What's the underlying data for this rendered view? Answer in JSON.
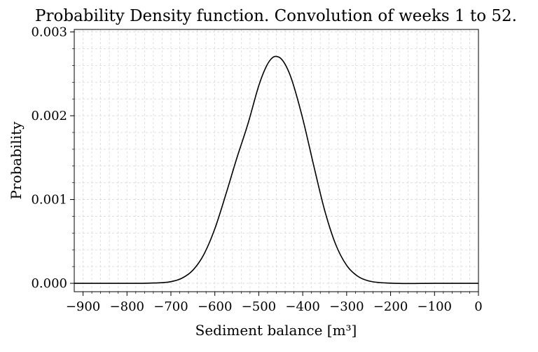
{
  "chart_data": {
    "type": "line",
    "title": "Probability Density function. Convolution of weeks 1 to 52.",
    "xlabel": "Sediment balance [m³]",
    "ylabel": "Probability",
    "xlim": [
      -920,
      0
    ],
    "ylim": [
      -0.0001,
      0.00303
    ],
    "x_ticks": [
      -900,
      -800,
      -700,
      -600,
      -500,
      -400,
      -300,
      -200,
      -100,
      0
    ],
    "x_tick_labels": [
      "−900",
      "−800",
      "−700",
      "−600",
      "−500",
      "−400",
      "−300",
      "−200",
      "−100",
      "0"
    ],
    "y_ticks": [
      0.0,
      0.001,
      0.002,
      0.003
    ],
    "y_tick_labels": [
      "0.000",
      "0.001",
      "0.002",
      "0.003"
    ],
    "grid": true,
    "line_color": "#000000",
    "series": [
      {
        "x": [
          -920,
          -800,
          -750,
          -700,
          -675,
          -650,
          -625,
          -600,
          -575,
          -550,
          -525,
          -500,
          -487.5,
          -475,
          -462.5,
          -450,
          -437.5,
          -425,
          -400,
          -375,
          -350,
          -325,
          -300,
          -275,
          -250,
          -200,
          -100,
          0
        ],
        "y": [
          0.0,
          0.0,
          2e-06,
          2e-05,
          6.1e-05,
          0.000157,
          0.000345,
          0.000652,
          0.001061,
          0.001494,
          0.001898,
          0.002359,
          0.002536,
          0.002658,
          0.002708,
          0.002685,
          0.00259,
          0.002431,
          0.001966,
          0.001406,
          0.00087,
          0.000465,
          0.000214,
          8.5e-05,
          2.9e-05,
          2e-06,
          0.0,
          0.0
        ]
      }
    ]
  }
}
